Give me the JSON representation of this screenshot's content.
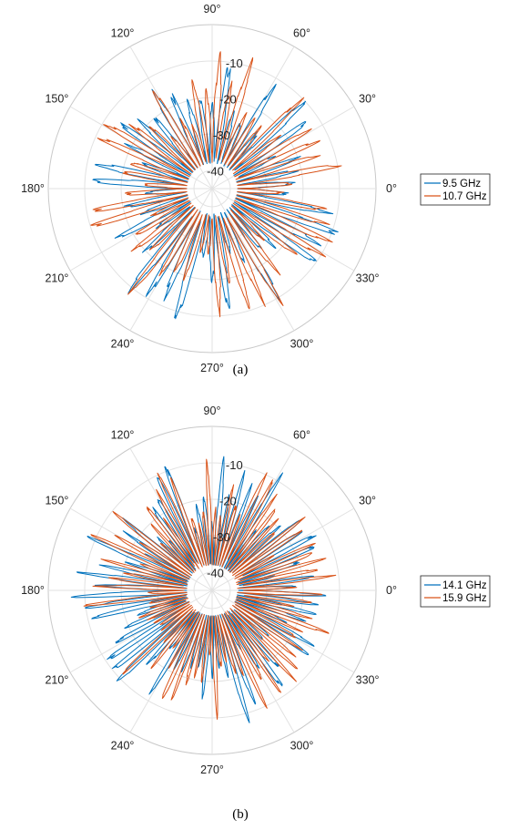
{
  "figure": {
    "captions": [
      "(a)",
      "(b)"
    ]
  },
  "chart_data": [
    {
      "type": "polar_line",
      "caption": "(a)",
      "radial_ticks": [
        -40,
        -30,
        -20,
        -10
      ],
      "radial_tick_labels": [
        "-40",
        "-30",
        "-20",
        "-10"
      ],
      "rlim": [
        -45,
        0
      ],
      "angle_ticks": [
        0,
        30,
        60,
        90,
        120,
        150,
        180,
        210,
        240,
        270,
        300,
        330
      ],
      "angle_tick_labels": [
        "0°",
        "30°",
        "60°",
        "90°",
        "120°",
        "150°",
        "180°",
        "210°",
        "240°",
        "270°",
        "300°",
        "330°"
      ],
      "grid": true,
      "legend_position": "right",
      "series": [
        {
          "name": "9.5 GHz",
          "color": "#0072BD",
          "seed": 11,
          "lobes": 46,
          "peak_db": -8,
          "floor_db": -38
        },
        {
          "name": "10.7 GHz",
          "color": "#D95319",
          "seed": 29,
          "lobes": 52,
          "peak_db": -9,
          "floor_db": -38
        }
      ]
    },
    {
      "type": "polar_line",
      "caption": "(b)",
      "radial_ticks": [
        -40,
        -30,
        -20,
        -10
      ],
      "radial_tick_labels": [
        "-40",
        "-30",
        "-20",
        "-10"
      ],
      "rlim": [
        -45,
        0
      ],
      "angle_ticks": [
        0,
        30,
        60,
        90,
        120,
        150,
        180,
        210,
        240,
        270,
        300,
        330
      ],
      "angle_tick_labels": [
        "0°",
        "30°",
        "60°",
        "90°",
        "120°",
        "150°",
        "180°",
        "210°",
        "240°",
        "270°",
        "300°",
        "330°"
      ],
      "grid": true,
      "legend_position": "right",
      "series": [
        {
          "name": "14.1 GHz",
          "color": "#0072BD",
          "seed": 47,
          "lobes": 70,
          "peak_db": -8,
          "floor_db": -38
        },
        {
          "name": "15.9 GHz",
          "color": "#D95319",
          "seed": 83,
          "lobes": 80,
          "peak_db": -9,
          "floor_db": -38
        }
      ]
    }
  ]
}
